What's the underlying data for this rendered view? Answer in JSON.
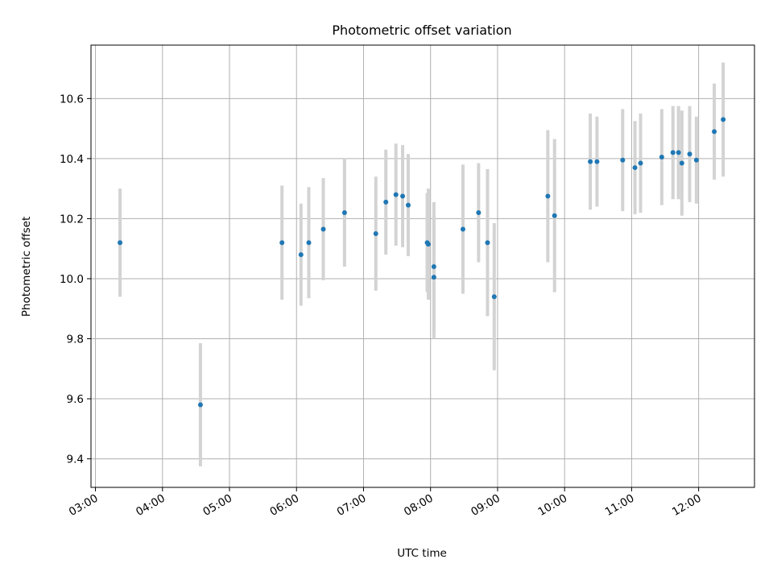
{
  "chart_data": {
    "type": "scatter",
    "title": "Photometric offset variation",
    "xlabel": "UTC time",
    "ylabel": "Photometric offset",
    "x_ticks": [
      "03:00",
      "04:00",
      "05:00",
      "06:00",
      "07:00",
      "08:00",
      "09:00",
      "10:00",
      "11:00",
      "12:00"
    ],
    "y_ticks": [
      "9.4",
      "9.6",
      "9.8",
      "10.0",
      "10.2",
      "10.4",
      "10.6"
    ],
    "xlim": [
      "02:56",
      "12:50"
    ],
    "ylim": [
      9.305,
      10.778
    ],
    "grid": true,
    "colors": {
      "point": "#1f77b4",
      "errorbar": "#d3d3d3",
      "grid": "#b0b0b0"
    },
    "points": [
      {
        "x": "03:22",
        "y": 10.12,
        "err": 0.18
      },
      {
        "x": "04:34",
        "y": 9.58,
        "err": 0.205
      },
      {
        "x": "05:47",
        "y": 10.12,
        "err": 0.19
      },
      {
        "x": "06:04",
        "y": 10.08,
        "err": 0.17
      },
      {
        "x": "06:11",
        "y": 10.12,
        "err": 0.185
      },
      {
        "x": "06:24",
        "y": 10.165,
        "err": 0.17
      },
      {
        "x": "06:43",
        "y": 10.22,
        "err": 0.18
      },
      {
        "x": "07:11",
        "y": 10.15,
        "err": 0.19
      },
      {
        "x": "07:20",
        "y": 10.255,
        "err": 0.175
      },
      {
        "x": "07:29",
        "y": 10.28,
        "err": 0.17
      },
      {
        "x": "07:35",
        "y": 10.275,
        "err": 0.17
      },
      {
        "x": "07:40",
        "y": 10.245,
        "err": 0.17
      },
      {
        "x": "07:57",
        "y": 10.12,
        "err": 0.165
      },
      {
        "x": "07:58",
        "y": 10.115,
        "err": 0.185
      },
      {
        "x": "08:03",
        "y": 10.04,
        "err": 0.215
      },
      {
        "x": "08:03",
        "y": 10.005,
        "err": 0.205
      },
      {
        "x": "08:29",
        "y": 10.165,
        "err": 0.215
      },
      {
        "x": "08:43",
        "y": 10.22,
        "err": 0.165
      },
      {
        "x": "08:51",
        "y": 10.12,
        "err": 0.245
      },
      {
        "x": "08:57",
        "y": 9.94,
        "err": 0.245
      },
      {
        "x": "09:45",
        "y": 10.275,
        "err": 0.22
      },
      {
        "x": "09:51",
        "y": 10.21,
        "err": 0.255
      },
      {
        "x": "10:23",
        "y": 10.39,
        "err": 0.16
      },
      {
        "x": "10:29",
        "y": 10.39,
        "err": 0.15
      },
      {
        "x": "10:52",
        "y": 10.395,
        "err": 0.17
      },
      {
        "x": "11:03",
        "y": 10.37,
        "err": 0.155
      },
      {
        "x": "11:08",
        "y": 10.385,
        "err": 0.165
      },
      {
        "x": "11:27",
        "y": 10.405,
        "err": 0.16
      },
      {
        "x": "11:37",
        "y": 10.42,
        "err": 0.155
      },
      {
        "x": "11:42",
        "y": 10.42,
        "err": 0.155
      },
      {
        "x": "11:45",
        "y": 10.385,
        "err": 0.175
      },
      {
        "x": "11:52",
        "y": 10.415,
        "err": 0.16
      },
      {
        "x": "11:58",
        "y": 10.395,
        "err": 0.145
      },
      {
        "x": "12:14",
        "y": 10.49,
        "err": 0.16
      },
      {
        "x": "12:22",
        "y": 10.53,
        "err": 0.19
      }
    ]
  }
}
